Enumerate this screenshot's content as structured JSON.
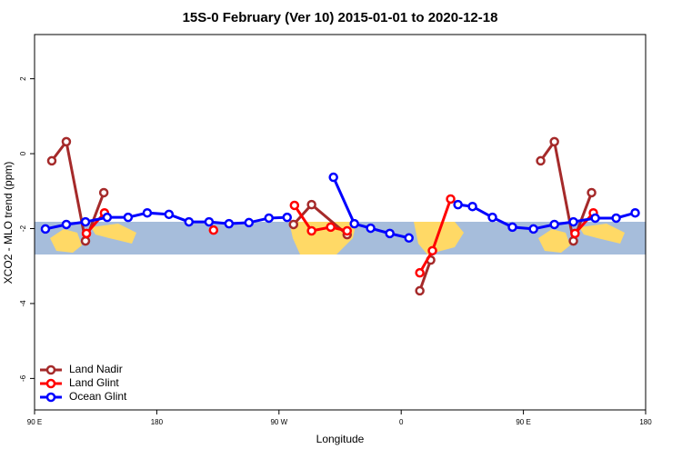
{
  "chart_data": {
    "type": "line",
    "title": "15S-0 February (Ver 10)   2015-01-01 to 2020-12-18",
    "xlabel": "Longitude",
    "ylabel": "XCO2 - MLO trend (ppm)",
    "xlim": [
      90,
      540
    ],
    "xticks": [
      {
        "value": 90,
        "label": "90 E"
      },
      {
        "value": 180,
        "label": "180"
      },
      {
        "value": 270,
        "label": "90 W"
      },
      {
        "value": 360,
        "label": "0"
      },
      {
        "value": 450,
        "label": "90 E"
      },
      {
        "value": 540,
        "label": "180"
      }
    ],
    "ylim": [
      -6.84,
      3.18
    ],
    "yticks": [
      2,
      0,
      -2,
      -4,
      -6
    ],
    "legend": "bottomleft",
    "series": [
      {
        "name": "Land Nadir",
        "color": "#a52a2a",
        "x": [
          102.7,
          113.4,
          127.5,
          141.0,
          null,
          280.7,
          294.0,
          320.2,
          null,
          373.7,
          381.7,
          null,
          462.7,
          472.8,
          486.8,
          500.2
        ],
        "values": [
          -0.19,
          0.32,
          -2.33,
          -1.04,
          null,
          -1.89,
          -1.36,
          -2.16,
          null,
          -3.66,
          -2.84,
          null,
          -0.19,
          0.32,
          -2.33,
          -1.04
        ]
      },
      {
        "name": "Land Glint",
        "color": "#ff0000",
        "x": [
          128.2,
          141.5,
          null,
          221.8,
          null,
          281.4,
          294.0,
          308.1,
          320.2,
          null,
          373.7,
          383.0,
          396.4,
          null,
          488.0,
          501.5
        ],
        "values": [
          -2.13,
          -1.58,
          null,
          -2.04,
          null,
          -1.38,
          -2.06,
          -1.96,
          -2.06,
          null,
          -3.18,
          -2.59,
          -1.21,
          null,
          -2.13,
          -1.58
        ]
      },
      {
        "name": "Ocean Glint",
        "color": "#0000ff",
        "x": [
          98.0,
          113.4,
          127.5,
          143.5,
          158.9,
          173.0,
          189.0,
          203.7,
          218.5,
          233.2,
          247.9,
          262.6,
          276.0,
          null,
          310.1,
          325.5,
          337.5,
          351.6,
          365.7,
          null,
          401.8,
          412.5,
          427.2,
          441.9,
          457.4,
          472.8,
          486.8,
          502.9,
          518.3,
          532.3
        ],
        "values": [
          -2.01,
          -1.89,
          -1.82,
          -1.7,
          -1.7,
          -1.58,
          -1.62,
          -1.82,
          -1.82,
          -1.87,
          -1.84,
          -1.72,
          -1.7,
          null,
          -0.63,
          -1.87,
          -1.99,
          -2.13,
          -2.25,
          null,
          -1.36,
          -1.41,
          -1.7,
          -1.96,
          -2.01,
          -1.89,
          -1.82,
          -1.72,
          -1.72,
          -1.58
        ]
      }
    ]
  }
}
